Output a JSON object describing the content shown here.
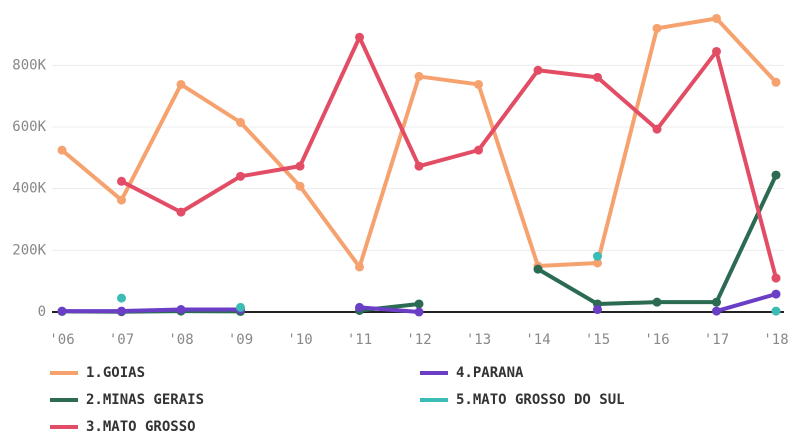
{
  "chart_data": {
    "type": "line",
    "categories": [
      "'06",
      "'07",
      "'08",
      "'09",
      "'10",
      "'11",
      "'12",
      "'13",
      "'14",
      "'15",
      "'16",
      "'17",
      "'18"
    ],
    "series": [
      {
        "name": "1.GOIAS",
        "color": "#f6a26f",
        "values": [
          525000,
          363000,
          738000,
          615000,
          408000,
          146000,
          764000,
          738000,
          149000,
          159000,
          920000,
          952000,
          745000
        ]
      },
      {
        "name": "2.MINAS GERAIS",
        "color": "#2b6b52",
        "values": [
          2000,
          1000,
          3000,
          2000,
          null,
          5000,
          26000,
          null,
          139000,
          26000,
          32000,
          32000,
          444000
        ]
      },
      {
        "name": "3.MATO GROSSO",
        "color": "#e24d65",
        "values": [
          null,
          424000,
          324000,
          440000,
          473000,
          891000,
          473000,
          525000,
          784000,
          761000,
          593000,
          845000,
          110000
        ]
      },
      {
        "name": "4.PARANA",
        "color": "#6a3fc5",
        "values": [
          3000,
          3000,
          8000,
          8000,
          null,
          15000,
          0,
          null,
          null,
          8000,
          null,
          3000,
          58000
        ]
      },
      {
        "name": "5.MATO GROSSO DO SUL",
        "color": "#3bbcb6",
        "values": [
          null,
          45000,
          null,
          15000,
          null,
          null,
          null,
          null,
          null,
          181000,
          null,
          null,
          3000
        ]
      }
    ],
    "ylim": [
      0,
      960000
    ],
    "yticks": [
      0,
      {
        "value": 200000,
        "label": "200K"
      },
      {
        "value": 400000,
        "label": "400K"
      },
      {
        "value": 600000,
        "label": "600K"
      },
      {
        "value": 800000,
        "label": "800K"
      }
    ],
    "grid": true
  }
}
